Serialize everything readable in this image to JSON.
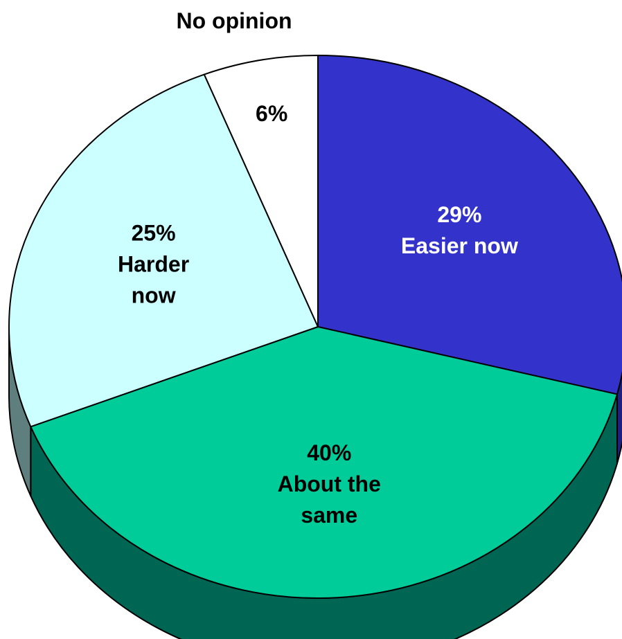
{
  "chart_data": {
    "type": "pie",
    "style": "3d",
    "title": "",
    "slices": [
      {
        "value": 29,
        "value_label": "29%",
        "label_lines": [
          "Easier now"
        ],
        "color": "#3333cc",
        "side_color": "#1f1f80",
        "label_color": "#ffffff"
      },
      {
        "value": 40,
        "value_label": "40%",
        "label_lines": [
          "About the",
          "same"
        ],
        "color": "#00cc99",
        "side_color": "#006654",
        "label_color": "#000000"
      },
      {
        "value": 25,
        "value_label": "25%",
        "label_lines": [
          "Harder",
          "now"
        ],
        "color": "#ccffff",
        "side_color": "#5f7f7f",
        "label_color": "#000000"
      },
      {
        "value": 6,
        "value_label": "6%",
        "label_lines": [],
        "outside_label": "No opinion",
        "color": "#ffffff",
        "side_color": "#7f7f7f",
        "label_color": "#000000"
      }
    ],
    "legend": "none",
    "start": "12 o'clock",
    "direction": "clockwise"
  }
}
